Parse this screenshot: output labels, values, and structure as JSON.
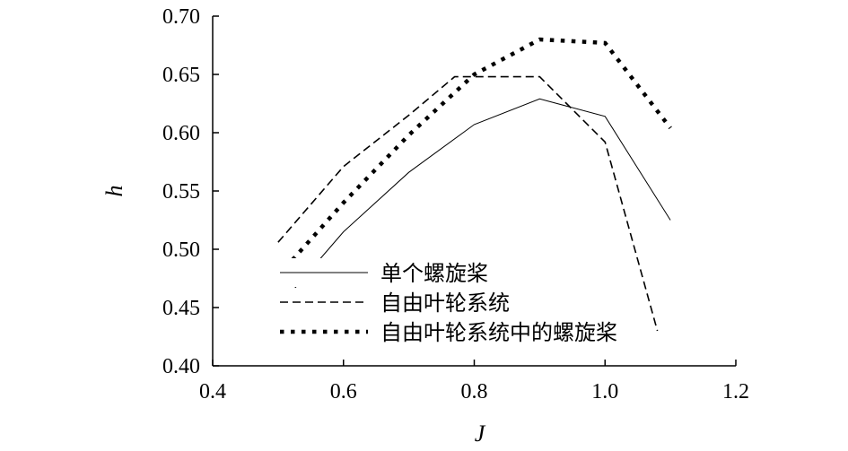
{
  "chart_data": {
    "type": "line",
    "xlabel": "J",
    "ylabel": "h",
    "xlim": [
      0.4,
      1.2
    ],
    "ylim": [
      0.4,
      0.7
    ],
    "x_ticks": [
      "0.4",
      "0.6",
      "0.8",
      "1.0",
      "1.2"
    ],
    "y_ticks": [
      "0.40",
      "0.45",
      "0.50",
      "0.55",
      "0.60",
      "0.65",
      "0.70"
    ],
    "grid": false,
    "legend_position": "lower-left",
    "series": [
      {
        "name": "单个螺旋桨",
        "style": "solid-thin",
        "color": "#000000",
        "x": [
          0.5,
          0.6,
          0.7,
          0.8,
          0.9,
          1.0,
          1.1
        ],
        "y": [
          0.45,
          0.515,
          0.566,
          0.607,
          0.629,
          0.614,
          0.525
        ]
      },
      {
        "name": "自由叶轮系统",
        "style": "dashed",
        "color": "#000000",
        "x": [
          0.5,
          0.6,
          0.7,
          0.77,
          0.8,
          0.9,
          1.0,
          1.08
        ],
        "y": [
          0.506,
          0.571,
          0.615,
          0.648,
          0.648,
          0.648,
          0.592,
          0.43
        ]
      },
      {
        "name": "自由叶轮系统中的螺旋桨",
        "style": "dotted-thick",
        "color": "#000000",
        "x": [
          0.5,
          0.6,
          0.7,
          0.8,
          0.9,
          1.0,
          1.1
        ],
        "y": [
          0.477,
          0.54,
          0.598,
          0.65,
          0.68,
          0.677,
          0.604
        ]
      }
    ]
  }
}
